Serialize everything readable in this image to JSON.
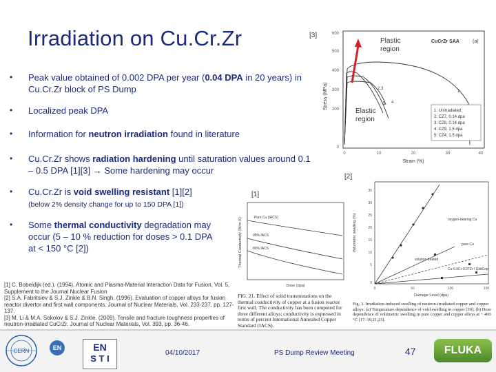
{
  "slide": {
    "title": "Irradiation on Cu.Cr.Zr",
    "bullets": [
      {
        "pre": "Peak value obtained of 0.002 DPA per year (",
        "bold": "0.04 DPA",
        "post": " in 20 years) in Cu.Cr.Zr block of PS Dump"
      },
      {
        "pre": "",
        "bold": "",
        "post": "Localized peak DPA"
      },
      {
        "pre": "Information for ",
        "bold": "neutron irradiation",
        "post": " found in literature"
      },
      {
        "pre": "Cu.Cr.Zr shows ",
        "bold": "radiation hardening",
        "post": " until saturation values around 0.1 – 0.5 DPA [1][3] → Some hardening may occur"
      },
      {
        "pre": "Cu.Cr.Zr is ",
        "bold": "void swelling resistant",
        "post": " [1][2]"
      },
      {
        "pre": "Some ",
        "bold": "thermal conductivity",
        "post": " degradation may occur (5 – 10 % reduction for doses > 0.1 DPA at < 150 °C [2])"
      }
    ],
    "bullet_symbol": "•",
    "sub_note": "(below 2% density change for up to 150 DPA [1])",
    "references": [
      "[1] C. Bobeldijk (ed.). (1994). Atomic and Plasma-Material Interaction Data for Fusion, Vol. 5, Supplement to the Journal Nuclear Fusion",
      "[2] S.A. Fabritsiev & S.J. Zinkle & B.N. Singh. (1996). Evaluation of copper alloys for fusion reactor divertor and first wall components. Journal of Nuclear Materials, Vol. 233-237, pp. 127-137.",
      "[3] M. Li & M.A. Sokolov & S.J. Zinkle. (2009). Tensile and fracture toughness properties of neutron-irradiated CuCrZr. Journal of Nuclear Materials, Vol. 393, pp. 36-46."
    ]
  },
  "figures": {
    "stress_strain": {
      "ref_tag": "[3]",
      "ref_tag_bottom": "[2]",
      "header": "CuCrZr SAA",
      "panel": "(a)",
      "plastic_label": "Plastic region",
      "elastic_label": "Elastic region",
      "ylabel": "Stress (MPa)",
      "xlabel": "Strain (%)",
      "yticks": [
        "600",
        "400",
        "200",
        "0"
      ],
      "yticks_overlay": [
        "500",
        "300"
      ],
      "xticks": [
        "0",
        "10",
        "20",
        "30",
        "40"
      ],
      "legend": [
        "1: Unirradiated",
        "2: CZ7, 0.14 dpa",
        "3: CZ8, 0.14 dpa",
        "4: CZ9, 1.5 dpa",
        "5: CZ4, 1.5 dpa"
      ],
      "curve_labels": [
        "1",
        "2,3",
        "5",
        "4"
      ]
    },
    "thermal": {
      "ref_tag": "[1]",
      "ylabel": "Thermal Conductivity (W/m·K)",
      "xlabel": "Dose (dpa)",
      "curves": [
        "Pure Cu (IACS)",
        "95% IACS",
        "80% IACS"
      ],
      "caption": "FIG. 21. Effect of solid transmutations on the thermal conductivity of copper at a fusion reactor first wall. The conductivity has been computed for three different alloys; conductivity is expressed in terms of percent International Annealed Copper Standard (IACS)."
    },
    "swelling": {
      "ylabel": "Volumetric swelling (%)",
      "xlabel": "Damage Level (dpa)",
      "yticks": [
        "35",
        "30",
        "25",
        "20",
        "15",
        "10",
        "5",
        "0"
      ],
      "xticks": [
        "0",
        "50",
        "100",
        "150"
      ],
      "labels": [
        "oxygen-bearing Cu",
        "pure Cu",
        "solution treated",
        "Cu-0.3Cr-0.07Zr / GlidCop"
      ],
      "caption": "Fig. 3. Irradiation-induced swelling of neutron-irradiated copper and copper alloys: (a) Temperature dependence of void swelling in copper [30]; (b) Dose dependence of volumetric swelling in pure copper and copper alloys at ~ 400 °C [17–19,21,23]."
    }
  },
  "footer": {
    "date": "04/10/2017",
    "meeting": "PS Dump Review Meeting",
    "page": "47",
    "logos": {
      "cern": "CERN",
      "en": "EN",
      "en_sti": "EN",
      "sti": "S T I",
      "fluka": "FLUKA"
    }
  },
  "colors": {
    "title": "#1c2a7a",
    "accent_arrow": "#d0202a",
    "footer_bg": "#f3f3f3"
  }
}
